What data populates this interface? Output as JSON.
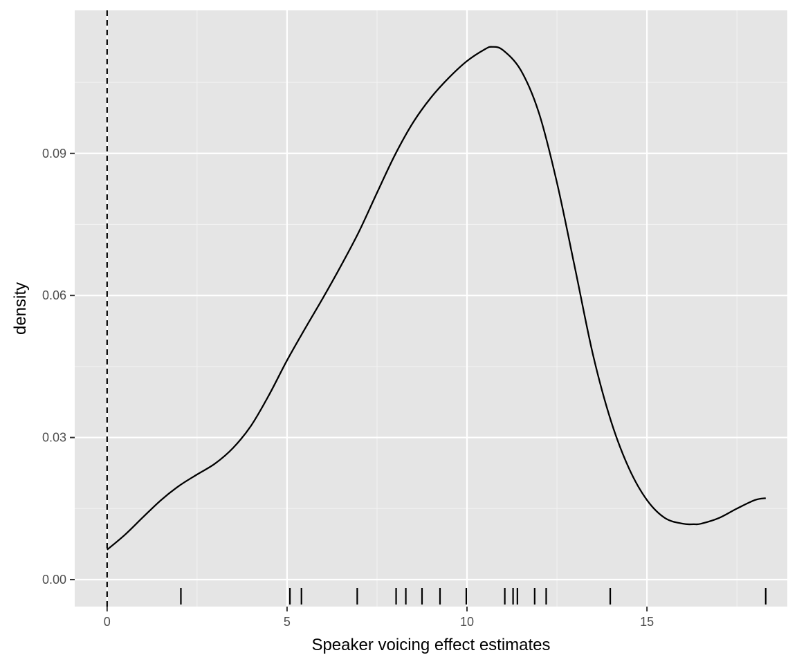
{
  "chart_data": {
    "type": "density",
    "title": "",
    "xlabel": "Speaker voicing effect estimates",
    "ylabel": "density",
    "xlim": [
      -0.9,
      18.9
    ],
    "ylim": [
      -0.0057,
      0.1202
    ],
    "x_ticks": [
      0,
      5,
      10,
      15
    ],
    "x_tick_labels": [
      "0",
      "5",
      "10",
      "15"
    ],
    "y_ticks": [
      0.0,
      0.03,
      0.06,
      0.09
    ],
    "y_tick_labels": [
      "0.00",
      "0.03",
      "0.06",
      "0.09"
    ],
    "grid": true,
    "background": "#e5e5e5",
    "reference_line": {
      "x": 0,
      "style": "dashed"
    },
    "series": [
      {
        "x": [
          0,
          0.5,
          1,
          1.5,
          2,
          2.5,
          3,
          3.5,
          4,
          4.5,
          5,
          5.5,
          6,
          6.5,
          7,
          7.5,
          8,
          8.5,
          9,
          9.5,
          10,
          10.5,
          10.7,
          11,
          11.5,
          12,
          12.5,
          13,
          13.5,
          14,
          14.5,
          15,
          15.5,
          16,
          16.3,
          16.5,
          17,
          17.5,
          18,
          18.3
        ],
        "y": [
          0.0063,
          0.0095,
          0.0132,
          0.0168,
          0.0198,
          0.0222,
          0.0245,
          0.0278,
          0.0325,
          0.039,
          0.0463,
          0.053,
          0.0595,
          0.0663,
          0.0735,
          0.0817,
          0.0897,
          0.0965,
          0.1018,
          0.106,
          0.1095,
          0.112,
          0.1125,
          0.1118,
          0.1075,
          0.0985,
          0.0838,
          0.0658,
          0.0475,
          0.0335,
          0.0235,
          0.0168,
          0.013,
          0.0118,
          0.0117,
          0.0118,
          0.013,
          0.015,
          0.0168,
          0.0172
        ]
      }
    ],
    "rug": [
      2.05,
      5.08,
      5.4,
      6.95,
      8.03,
      8.3,
      8.75,
      9.25,
      9.98,
      11.05,
      11.28,
      11.4,
      11.88,
      12.2,
      13.98,
      18.3
    ],
    "line_color": "#000000"
  }
}
